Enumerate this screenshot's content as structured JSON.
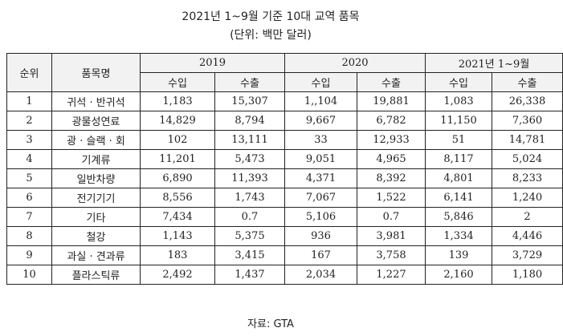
{
  "title": "2021년 1~9월 기준 10대 교역 품목",
  "unit": "(단위: 백만 달러)",
  "headers": {
    "rank": "순위",
    "item": "품목명",
    "years": [
      "2019",
      "2020",
      "2021년 1~9월"
    ],
    "import": "수입",
    "export": "수출"
  },
  "rows": [
    {
      "rank": "1",
      "item": "귀석 · 반귀석",
      "v": [
        "1,183",
        "15,307",
        "1,,104",
        "19,881",
        "1,083",
        "26,338"
      ]
    },
    {
      "rank": "2",
      "item": "광물성연료",
      "v": [
        "14,829",
        "8,794",
        "9,667",
        "6,782",
        "11,150",
        "7,360"
      ]
    },
    {
      "rank": "3",
      "item": "광 · 슬랙 · 회",
      "v": [
        "102",
        "13,111",
        "33",
        "12,933",
        "51",
        "14,781"
      ]
    },
    {
      "rank": "4",
      "item": "기계류",
      "v": [
        "11,201",
        "5,473",
        "9,051",
        "4,965",
        "8,117",
        "5,024"
      ]
    },
    {
      "rank": "5",
      "item": "일반차량",
      "v": [
        "6,890",
        "11,393",
        "4,371",
        "8,392",
        "4,801",
        "8,233"
      ]
    },
    {
      "rank": "6",
      "item": "전기기기",
      "v": [
        "8,556",
        "1,743",
        "7,067",
        "1,522",
        "6,141",
        "1,240"
      ]
    },
    {
      "rank": "7",
      "item": "기타",
      "v": [
        "7,434",
        "0.7",
        "5,106",
        "0.7",
        "5,846",
        "2"
      ]
    },
    {
      "rank": "8",
      "item": "철강",
      "v": [
        "1,143",
        "5,375",
        "936",
        "3,981",
        "1,334",
        "4,446"
      ]
    },
    {
      "rank": "9",
      "item": "과실 · 견과류",
      "v": [
        "183",
        "3,415",
        "167",
        "3,758",
        "139",
        "3,729"
      ]
    },
    {
      "rank": "10",
      "item": "플라스틱류",
      "v": [
        "2,492",
        "1,437",
        "2,034",
        "1,227",
        "2,160",
        "1,180"
      ]
    }
  ],
  "source": "자료: GTA"
}
